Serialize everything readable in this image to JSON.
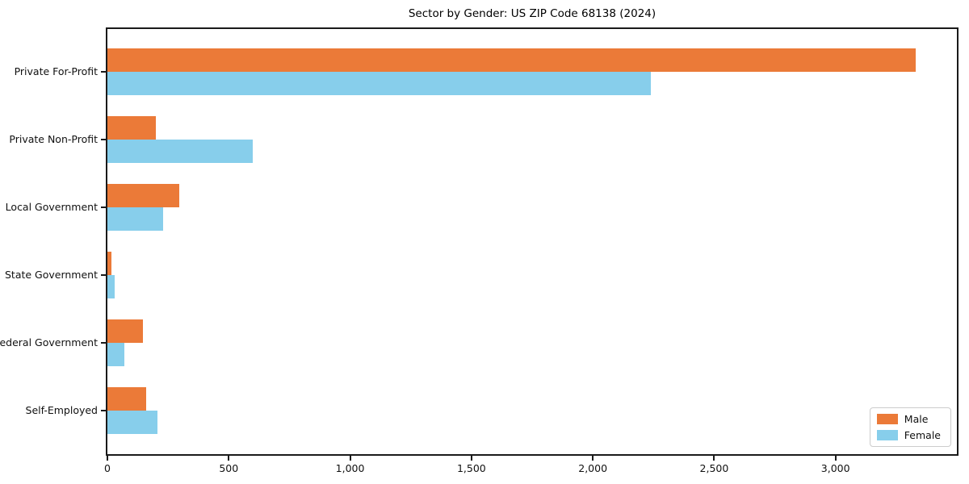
{
  "chart_data": {
    "type": "bar",
    "orientation": "horizontal",
    "title": "Sector by Gender: US ZIP Code 68138 (2024)",
    "xlabel": "",
    "ylabel": "",
    "categories": [
      "Private For-Profit",
      "Private Non-Profit",
      "Local Government",
      "State Government",
      "Federal Government",
      "Self-Employed"
    ],
    "series": [
      {
        "name": "Male",
        "color": "#EB7A38",
        "values": [
          3330,
          200,
          295,
          15,
          145,
          160
        ]
      },
      {
        "name": "Female",
        "color": "#87CEEB",
        "values": [
          2240,
          600,
          230,
          30,
          70,
          205
        ]
      }
    ],
    "xlim": [
      0,
      3500
    ],
    "xticks": [
      {
        "value": 0,
        "label": "0"
      },
      {
        "value": 500,
        "label": "500"
      },
      {
        "value": 1000,
        "label": "1,000"
      },
      {
        "value": 1500,
        "label": "1,500"
      },
      {
        "value": 2000,
        "label": "2,000"
      },
      {
        "value": 2500,
        "label": "2,500"
      },
      {
        "value": 3000,
        "label": "3,000"
      }
    ],
    "grid": false,
    "legend_position": "lower right",
    "background_color": "#ffffff",
    "spine_color": "#1a1a1a"
  }
}
